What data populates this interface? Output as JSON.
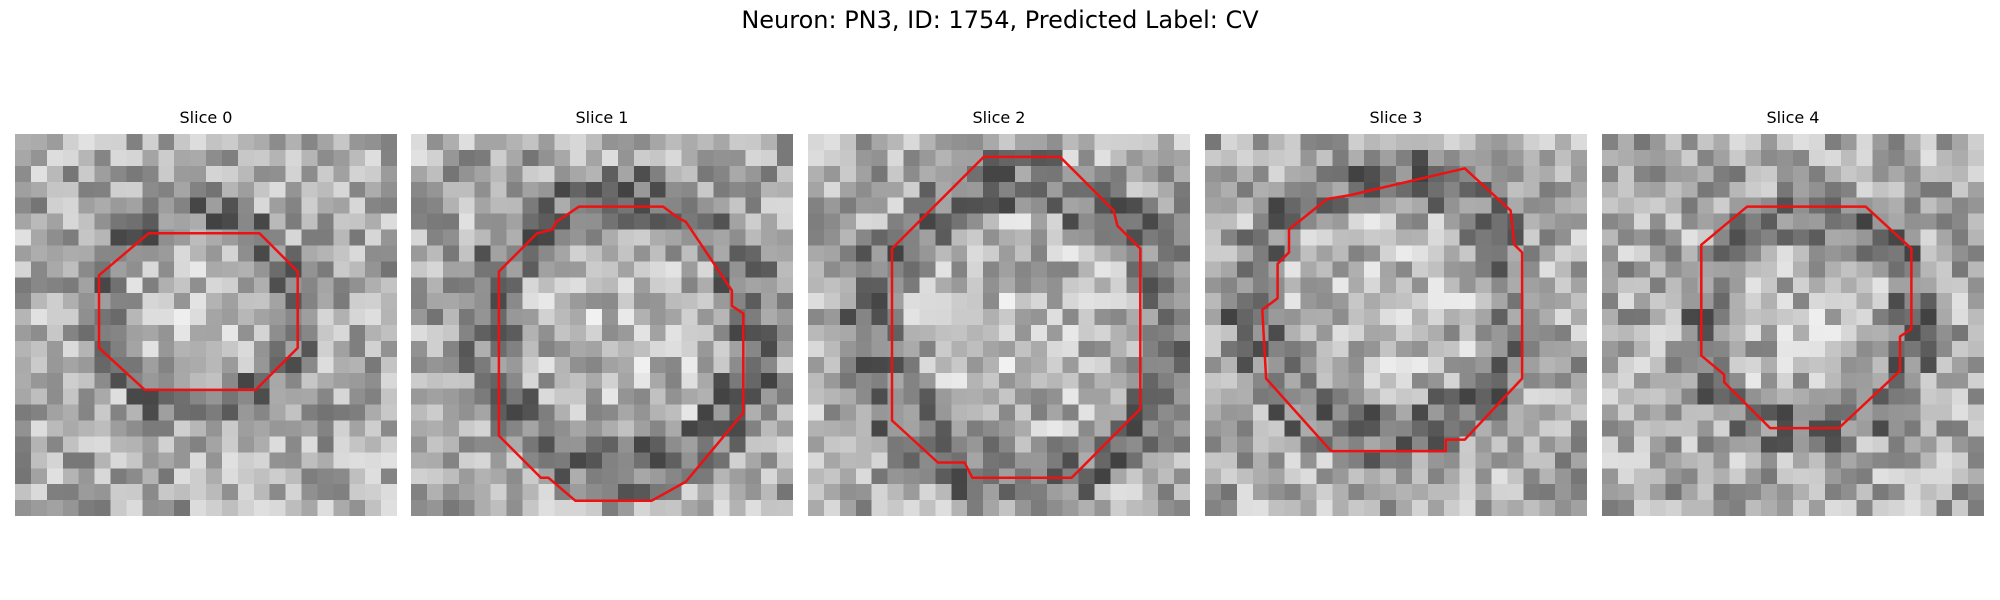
{
  "title": "Neuron: PN3, ID: 1754, Predicted Label: CV",
  "contour_color": "#ee1111",
  "panels": [
    {
      "label": "Slice 0",
      "seed": 11,
      "contour": [
        [
          0.35,
          0.26
        ],
        [
          0.64,
          0.26
        ],
        [
          0.74,
          0.36
        ],
        [
          0.74,
          0.56
        ],
        [
          0.63,
          0.67
        ],
        [
          0.34,
          0.67
        ],
        [
          0.22,
          0.56
        ],
        [
          0.22,
          0.37
        ]
      ]
    },
    {
      "label": "Slice 1",
      "seed": 23,
      "contour": [
        [
          0.44,
          0.19
        ],
        [
          0.66,
          0.19
        ],
        [
          0.7,
          0.22
        ],
        [
          0.72,
          0.23
        ],
        [
          0.84,
          0.41
        ],
        [
          0.84,
          0.45
        ],
        [
          0.87,
          0.47
        ],
        [
          0.87,
          0.73
        ],
        [
          0.72,
          0.91
        ],
        [
          0.63,
          0.96
        ],
        [
          0.43,
          0.96
        ],
        [
          0.36,
          0.9
        ],
        [
          0.34,
          0.9
        ],
        [
          0.23,
          0.79
        ],
        [
          0.23,
          0.36
        ],
        [
          0.33,
          0.26
        ],
        [
          0.37,
          0.25
        ],
        [
          0.38,
          0.23
        ]
      ]
    },
    {
      "label": "Slice 2",
      "seed": 37,
      "contour": [
        [
          0.46,
          0.06
        ],
        [
          0.66,
          0.06
        ],
        [
          0.8,
          0.2
        ],
        [
          0.81,
          0.24
        ],
        [
          0.87,
          0.3
        ],
        [
          0.87,
          0.72
        ],
        [
          0.69,
          0.9
        ],
        [
          0.43,
          0.9
        ],
        [
          0.41,
          0.86
        ],
        [
          0.34,
          0.86
        ],
        [
          0.22,
          0.75
        ],
        [
          0.22,
          0.3
        ]
      ]
    },
    {
      "label": "Slice 3",
      "seed": 41,
      "contour": [
        [
          0.38,
          0.16
        ],
        [
          0.68,
          0.09
        ],
        [
          0.8,
          0.2
        ],
        [
          0.81,
          0.29
        ],
        [
          0.83,
          0.31
        ],
        [
          0.83,
          0.64
        ],
        [
          0.68,
          0.8
        ],
        [
          0.63,
          0.8
        ],
        [
          0.63,
          0.83
        ],
        [
          0.33,
          0.83
        ],
        [
          0.16,
          0.64
        ],
        [
          0.15,
          0.46
        ],
        [
          0.19,
          0.43
        ],
        [
          0.19,
          0.34
        ],
        [
          0.22,
          0.31
        ],
        [
          0.22,
          0.25
        ],
        [
          0.32,
          0.17
        ]
      ]
    },
    {
      "label": "Slice 4",
      "seed": 59,
      "contour": [
        [
          0.38,
          0.19
        ],
        [
          0.69,
          0.19
        ],
        [
          0.81,
          0.3
        ],
        [
          0.81,
          0.51
        ],
        [
          0.78,
          0.53
        ],
        [
          0.78,
          0.62
        ],
        [
          0.62,
          0.77
        ],
        [
          0.44,
          0.77
        ],
        [
          0.32,
          0.65
        ],
        [
          0.32,
          0.63
        ],
        [
          0.26,
          0.58
        ],
        [
          0.26,
          0.29
        ]
      ]
    }
  ]
}
